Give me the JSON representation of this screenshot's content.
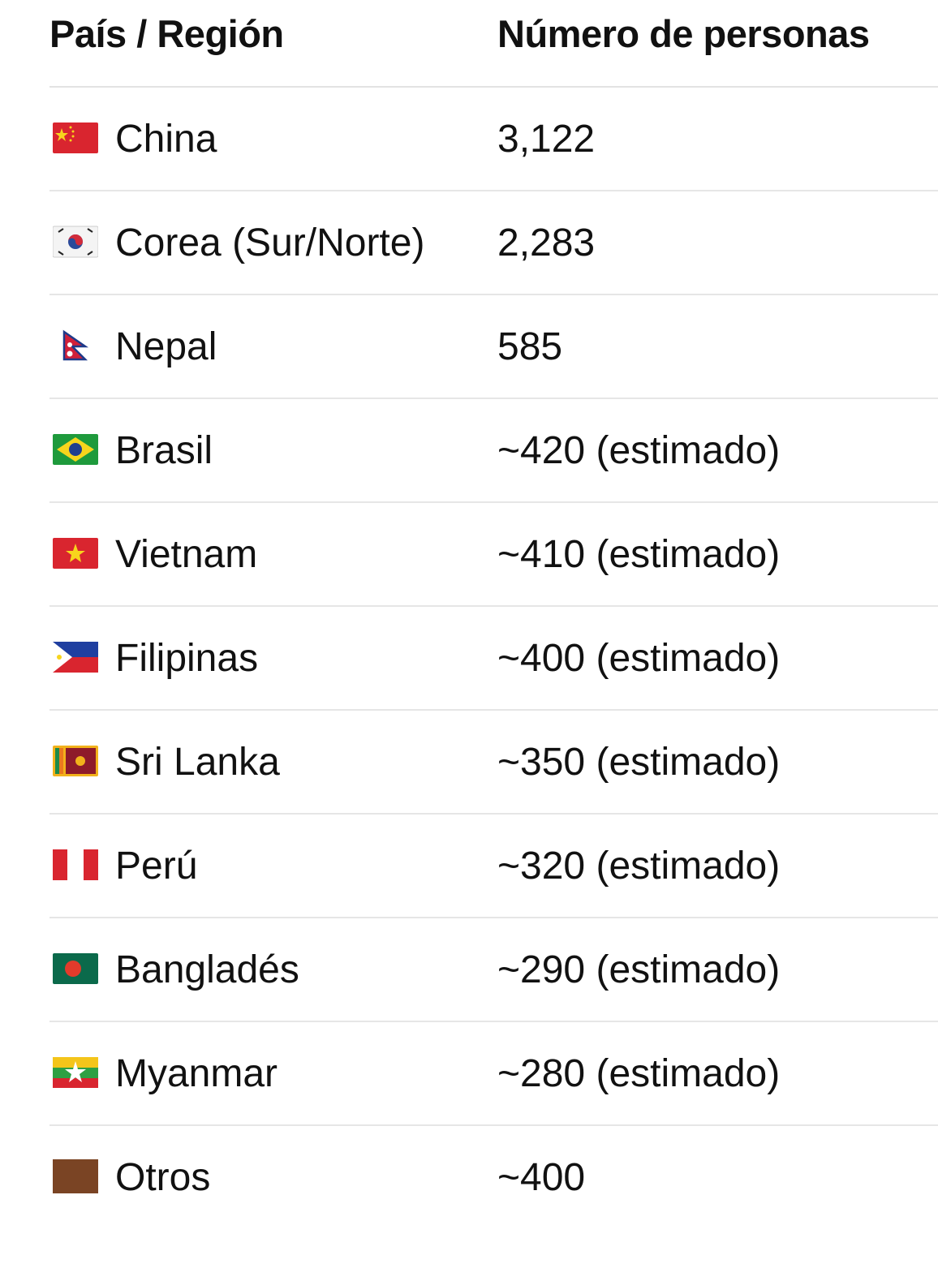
{
  "table": {
    "headers": [
      "País / Región",
      "Número de personas"
    ],
    "rows": [
      {
        "flag": "china-flag-icon",
        "country": "China",
        "count": "3,122"
      },
      {
        "flag": "korea-flag-icon",
        "country": "Corea (Sur/Norte)",
        "count": "2,283"
      },
      {
        "flag": "nepal-flag-icon",
        "country": "Nepal",
        "count": "585"
      },
      {
        "flag": "brazil-flag-icon",
        "country": "Brasil",
        "count": "~420 (estimado)"
      },
      {
        "flag": "vietnam-flag-icon",
        "country": "Vietnam",
        "count": "~410 (estimado)"
      },
      {
        "flag": "philippines-flag-icon",
        "country": "Filipinas",
        "count": "~400 (estimado)"
      },
      {
        "flag": "sri-lanka-flag-icon",
        "country": "Sri Lanka",
        "count": "~350 (estimado)"
      },
      {
        "flag": "peru-flag-icon",
        "country": "Perú",
        "count": "~320 (estimado)"
      },
      {
        "flag": "bangladesh-flag-icon",
        "country": "Bangladés",
        "count": "~290 (estimado)"
      },
      {
        "flag": "myanmar-flag-icon",
        "country": "Myanmar",
        "count": "~280 (estimado)"
      },
      {
        "flag": "brown-square-icon",
        "country": "Otros",
        "count": "~400"
      }
    ]
  }
}
